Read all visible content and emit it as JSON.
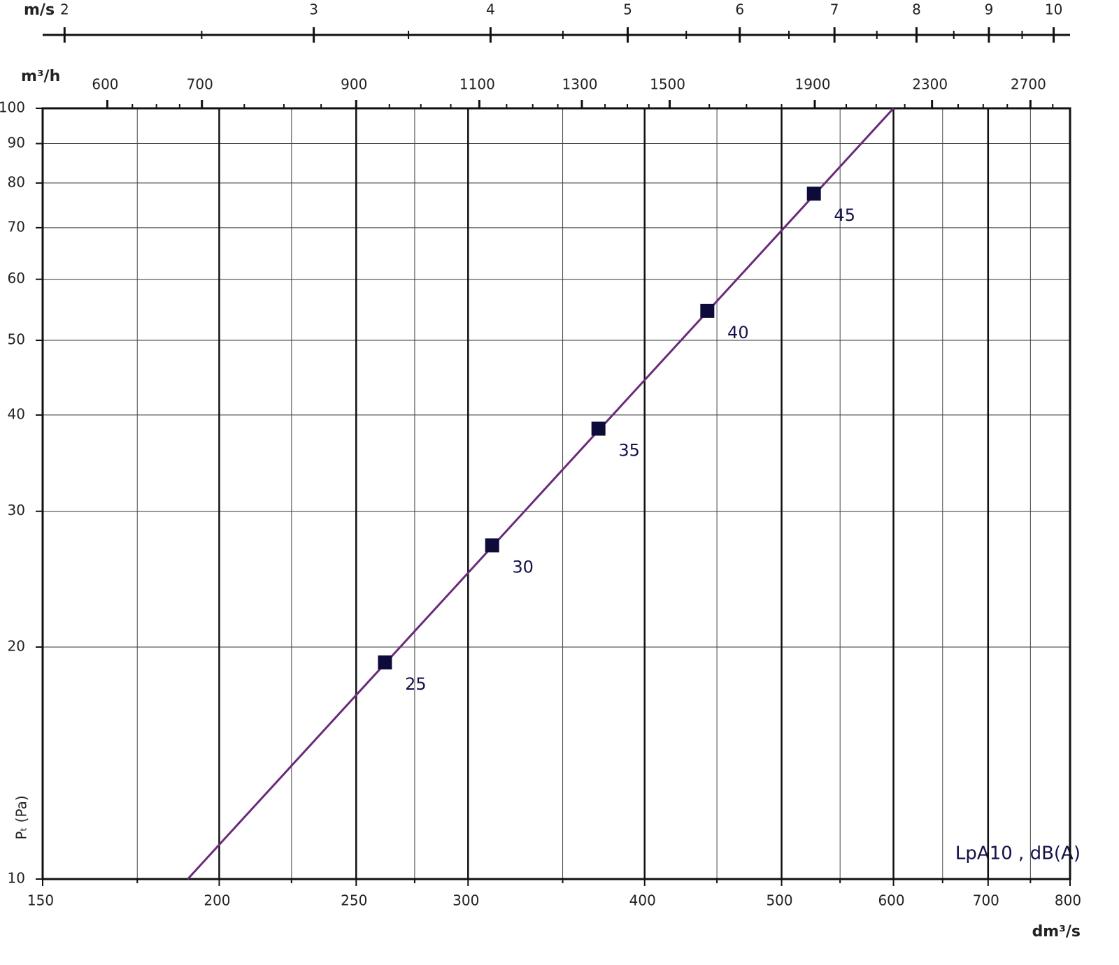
{
  "chart_data": {
    "type": "line",
    "x_label": "dm³/s",
    "y_label": "Pₜ (Pa)",
    "annotation": "LpA10 , dB(A)",
    "log_x": true,
    "log_y": true,
    "grid": true,
    "xlim": [
      150,
      800
    ],
    "ylim": [
      10,
      100
    ],
    "xticks": [
      150,
      200,
      250,
      300,
      400,
      500,
      600,
      700,
      800
    ],
    "x_minor_ticks": [
      175,
      225,
      275,
      350,
      450,
      550,
      650,
      750
    ],
    "yticks": [
      10,
      20,
      30,
      40,
      50,
      60,
      70,
      80,
      90,
      100
    ],
    "series": [
      {
        "color": "#6a2c7a",
        "x": [
          190,
          600
        ],
        "values": [
          10,
          100
        ]
      }
    ],
    "points": {
      "color": "#0d0b3a",
      "x": [
        262,
        312,
        371,
        443,
        527
      ],
      "values": [
        19.1,
        27.1,
        38.4,
        54.6,
        77.5
      ],
      "labels": [
        25,
        30,
        35,
        40,
        45
      ]
    },
    "top_axes": [
      {
        "label": "m/s",
        "xlim": [
          1.93,
          10.27
        ],
        "ticks": [
          2,
          3,
          4,
          5,
          6,
          7,
          8,
          9,
          10
        ],
        "minor_ticks": [
          2.5,
          3.5,
          4.5,
          5.5,
          6.5,
          7.5,
          8.5,
          9.5
        ]
      },
      {
        "label": "m³/h",
        "xlim": [
          540,
          2880
        ],
        "ticks": [
          600,
          700,
          900,
          1100,
          1300,
          1500,
          1900,
          2300,
          2700
        ],
        "minor_ticks": [
          625,
          650,
          675,
          750,
          800,
          850,
          950,
          1000,
          1050,
          1150,
          1200,
          1250,
          1350,
          1400,
          1450,
          1600,
          1700,
          1800,
          2000,
          2100,
          2200,
          2400,
          2500,
          2600,
          2800
        ]
      }
    ]
  }
}
